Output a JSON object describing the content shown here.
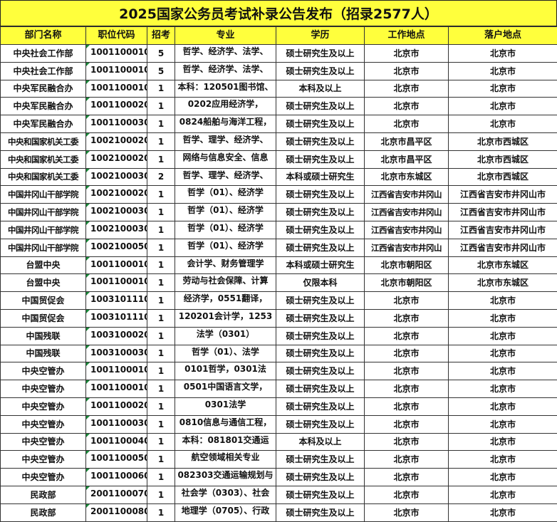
{
  "title": "2025国家公务员考试补录公告发布（招录2577人）",
  "colors": {
    "header_bg": "#ffff3c",
    "code_marker": "#1a8a3a"
  },
  "columns": [
    "部门名称",
    "职位代码",
    "招考",
    "专业",
    "学历",
    "工作地点",
    "落户地点"
  ],
  "rows": [
    [
      "中央社会工作部",
      "1001100010",
      "5",
      "哲学、经济学、法学、",
      "硕士研究生及以上",
      "北京市",
      "北京市"
    ],
    [
      "中央社会工作部",
      "1001100010",
      "5",
      "哲学、经济学、法学、",
      "硕士研究生及以上",
      "北京市",
      "北京市"
    ],
    [
      "中央军民融合办",
      "1001100010",
      "1",
      "本科：120501图书馆、",
      "本科及以上",
      "北京市",
      "北京市"
    ],
    [
      "中央军民融合办",
      "1001100020",
      "1",
      "0202应用经济学，",
      "硕士研究生及以上",
      "北京市",
      "北京市"
    ],
    [
      "中央军民融合办",
      "1001100030",
      "1",
      "0824船舶与海洋工程，",
      "硕士研究生及以上",
      "北京市",
      "北京市"
    ],
    [
      "中央和国家机关工委",
      "1002100020",
      "1",
      "哲学、理学、经济学、",
      "硕士研究生及以上",
      "北京市昌平区",
      "北京市西城区"
    ],
    [
      "中央和国家机关工委",
      "1002100020",
      "1",
      "网络与信息安全、信息",
      "硕士研究生及以上",
      "北京市昌平区",
      "北京市西城区"
    ],
    [
      "中央和国家机关工委",
      "1002100030",
      "2",
      "哲学、理学、经济学、",
      "本科或硕士研究生",
      "北京市东城区",
      "北京市西城区"
    ],
    [
      "中国井冈山干部学院",
      "1002100020",
      "1",
      "哲学（01）、经济学",
      "硕士研究生及以上",
      "江西省吉安市井冈山",
      "江西省吉安市井冈山市"
    ],
    [
      "中国井冈山干部学院",
      "1002100030",
      "1",
      "哲学（01）、经济学",
      "硕士研究生及以上",
      "江西省吉安市井冈山",
      "江西省吉安市井冈山市"
    ],
    [
      "中国井冈山干部学院",
      "1002100030",
      "1",
      "哲学（01）、经济学",
      "硕士研究生及以上",
      "江西省吉安市井冈山",
      "江西省吉安市井冈山市"
    ],
    [
      "中国井冈山干部学院",
      "1002100050",
      "1",
      "哲学（01）、经济学",
      "硕士研究生及以上",
      "江西省吉安市井冈山",
      "江西省吉安市井冈山市"
    ],
    [
      "台盟中央",
      "1001100010",
      "1",
      "会计学、财务管理学",
      "本科或硕士研究生",
      "北京市朝阳区",
      "北京市东城区"
    ],
    [
      "台盟中央",
      "1001100010",
      "1",
      "劳动与社会保障、计算",
      "仅限本科",
      "北京市朝阳区",
      "北京市东城区"
    ],
    [
      "中国贸促会",
      "1003101110",
      "1",
      "经济学，0551翻译，",
      "硕士研究生及以上",
      "北京市",
      "北京市"
    ],
    [
      "中国贸促会",
      "1003101110",
      "1",
      "120201会计学，1253",
      "硕士研究生及以上",
      "北京市",
      "北京市"
    ],
    [
      "中国残联",
      "1003100020",
      "1",
      "法学（0301）",
      "硕士研究生及以上",
      "北京市",
      "北京市"
    ],
    [
      "中国残联",
      "1003100030",
      "1",
      "哲学（01）、法学",
      "硕士研究生及以上",
      "北京市",
      "北京市"
    ],
    [
      "中央空管办",
      "1001100010",
      "1",
      "0101哲学，0301法",
      "硕士研究生及以上",
      "北京市",
      "北京市"
    ],
    [
      "中央空管办",
      "1001100010",
      "1",
      "0501中国语言文学，",
      "硕士研究生及以上",
      "北京市",
      "北京市"
    ],
    [
      "中央空管办",
      "1001100020",
      "1",
      "0301法学",
      "硕士研究生及以上",
      "北京市",
      "北京市"
    ],
    [
      "中央空管办",
      "1001100030",
      "1",
      "0810信息与通信工程，",
      "硕士研究生及以上",
      "北京市",
      "北京市"
    ],
    [
      "中央空管办",
      "1001100040",
      "1",
      "本科：081801交通运",
      "本科及以上",
      "北京市",
      "北京市"
    ],
    [
      "中央空管办",
      "1001100050",
      "1",
      "航空领域相关专业",
      "硕士研究生及以上",
      "北京市",
      "北京市"
    ],
    [
      "中央空管办",
      "1001100060",
      "1",
      "082303交通运输规划与",
      "硕士研究生及以上",
      "北京市",
      "北京市"
    ],
    [
      "民政部",
      "2001100070",
      "1",
      "社会学（0303）、社会",
      "硕士研究生及以上",
      "北京市",
      "北京市"
    ],
    [
      "民政部",
      "2001100080",
      "1",
      "地理学（0705）、行政",
      "硕士研究生及以上",
      "北京市",
      "北京市"
    ]
  ]
}
